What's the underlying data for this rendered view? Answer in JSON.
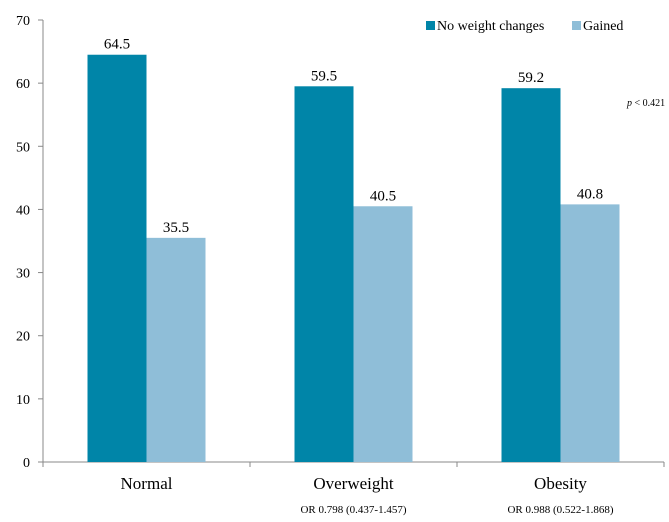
{
  "chart_data": {
    "type": "bar",
    "categories": [
      "Normal",
      "Overweight",
      "Obesity"
    ],
    "series": [
      {
        "name": "No weight changes",
        "color": "#0085a8",
        "values": [
          64.5,
          59.5,
          59.2
        ],
        "labels": [
          "64.5",
          "59.5",
          "59.2"
        ]
      },
      {
        "name": "Gained",
        "color": "#8fbed8",
        "values": [
          35.5,
          40.5,
          40.8
        ],
        "labels": [
          "35.5",
          "40.5",
          "40.8"
        ]
      }
    ],
    "ylim": [
      0,
      70
    ],
    "yticks": [
      "0",
      "10",
      "20",
      "30",
      "40",
      "50",
      "60",
      "70"
    ],
    "ytick_values": [
      0,
      10,
      20,
      30,
      40,
      50,
      60,
      70
    ],
    "or_labels": [
      "",
      "OR 0.798 (0.437-1.457)",
      "OR 0.988 (0.522-1.868)"
    ],
    "p_annotation": {
      "prefix": "p",
      "text": " < 0.421"
    },
    "legend_position": "top-right",
    "grid": false
  }
}
